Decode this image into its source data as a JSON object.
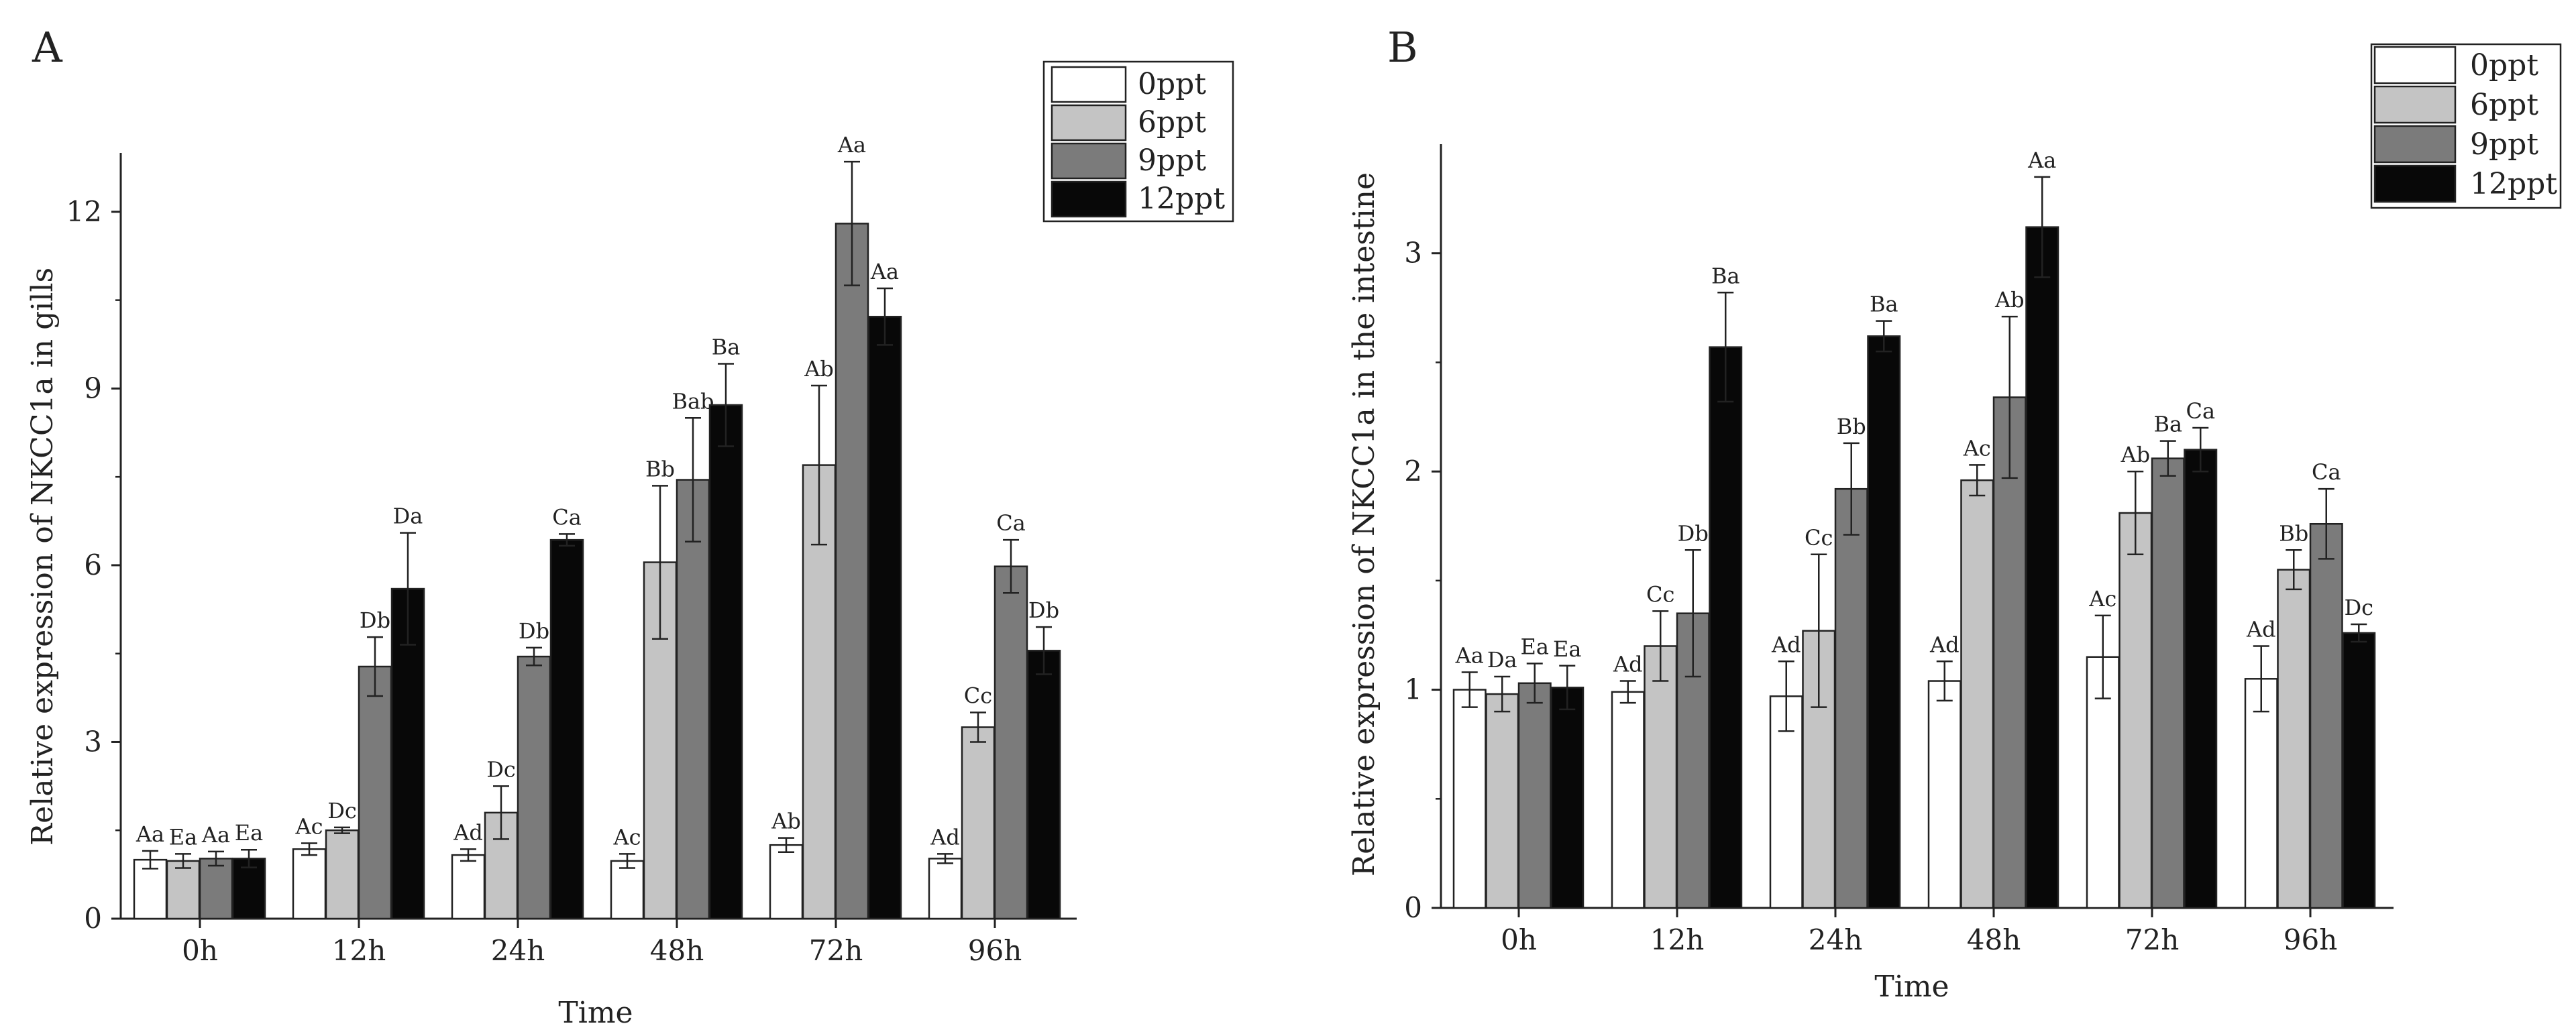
{
  "colors": {
    "0ppt": "#ffffff",
    "6ppt": "#c4c4c4",
    "9ppt": "#7b7b7b",
    "12ppt": "#080808",
    "stroke": "#222222"
  },
  "chart_data": [
    {
      "type": "bar",
      "panel_letter": "A",
      "title": "",
      "xlabel": "Time",
      "ylabel": "Relative expression of NKCC1a in gills",
      "categories": [
        "0h",
        "12h",
        "24h",
        "48h",
        "72h",
        "96h"
      ],
      "ylim": [
        0,
        13
      ],
      "yticks": [
        0,
        3,
        6,
        9,
        12
      ],
      "grid": false,
      "legend_position": "top-right",
      "series": [
        {
          "name": "0ppt",
          "color_key": "0ppt",
          "values": [
            1.0,
            1.18,
            1.08,
            0.98,
            1.25,
            1.02
          ],
          "errors": [
            0.15,
            0.1,
            0.1,
            0.12,
            0.12,
            0.08
          ],
          "labels": [
            "Aa",
            "Ac",
            "Ad",
            "Ac",
            "Ab",
            "Ad"
          ]
        },
        {
          "name": "6ppt",
          "color_key": "6ppt",
          "values": [
            0.98,
            1.5,
            1.8,
            6.05,
            7.7,
            3.25
          ],
          "errors": [
            0.12,
            0.05,
            0.45,
            1.3,
            1.35,
            0.25
          ],
          "labels": [
            "Ea",
            "Dc",
            "Dc",
            "Bb",
            "Ab",
            "Cc"
          ]
        },
        {
          "name": "9ppt",
          "color_key": "9ppt",
          "values": [
            1.02,
            4.28,
            4.45,
            7.45,
            11.8,
            5.98
          ],
          "errors": [
            0.12,
            0.5,
            0.15,
            1.05,
            1.05,
            0.45
          ],
          "labels": [
            "Aa",
            "Db",
            "Db",
            "Bab",
            "Aa",
            "Ca"
          ]
        },
        {
          "name": "12ppt",
          "color_key": "12ppt",
          "values": [
            1.02,
            5.6,
            6.43,
            8.72,
            10.22,
            4.55
          ],
          "errors": [
            0.15,
            0.95,
            0.1,
            0.7,
            0.48,
            0.4
          ],
          "labels": [
            "Ea",
            "Da",
            "Ca",
            "Ba",
            "Aa",
            "Db"
          ]
        }
      ]
    },
    {
      "type": "bar",
      "panel_letter": "B",
      "title": "",
      "xlabel": "Time",
      "ylabel": "Relative expression of NKCC1a in the intestine",
      "categories": [
        "0h",
        "12h",
        "24h",
        "48h",
        "72h",
        "96h"
      ],
      "ylim": [
        0,
        3.5
      ],
      "yticks": [
        0,
        1,
        2,
        3
      ],
      "grid": false,
      "legend_position": "top-right",
      "series": [
        {
          "name": "0ppt",
          "color_key": "0ppt",
          "values": [
            1.0,
            0.99,
            0.97,
            1.04,
            1.15,
            1.05
          ],
          "errors": [
            0.08,
            0.05,
            0.16,
            0.09,
            0.19,
            0.15
          ],
          "labels": [
            "Aa",
            "Ad",
            "Ad",
            "Ad",
            "Ac",
            "Ad"
          ]
        },
        {
          "name": "6ppt",
          "color_key": "6ppt",
          "values": [
            0.98,
            1.2,
            1.27,
            1.96,
            1.81,
            1.55
          ],
          "errors": [
            0.08,
            0.16,
            0.35,
            0.07,
            0.19,
            0.09
          ],
          "labels": [
            "Da",
            "Cc",
            "Cc",
            "Ac",
            "Ab",
            "Bb"
          ]
        },
        {
          "name": "9ppt",
          "color_key": "9ppt",
          "values": [
            1.03,
            1.35,
            1.92,
            2.34,
            2.06,
            1.76
          ],
          "errors": [
            0.09,
            0.29,
            0.21,
            0.37,
            0.08,
            0.16
          ],
          "labels": [
            "Ea",
            "Db",
            "Bb",
            "Ab",
            "Ba",
            "Ca"
          ]
        },
        {
          "name": "12ppt",
          "color_key": "12ppt",
          "values": [
            1.01,
            2.57,
            2.62,
            3.12,
            2.1,
            1.26
          ],
          "errors": [
            0.1,
            0.25,
            0.07,
            0.23,
            0.1,
            0.04
          ],
          "labels": [
            "Ea",
            "Ba",
            "Ba",
            "Aa",
            "Ca",
            "Dc"
          ]
        }
      ]
    }
  ]
}
